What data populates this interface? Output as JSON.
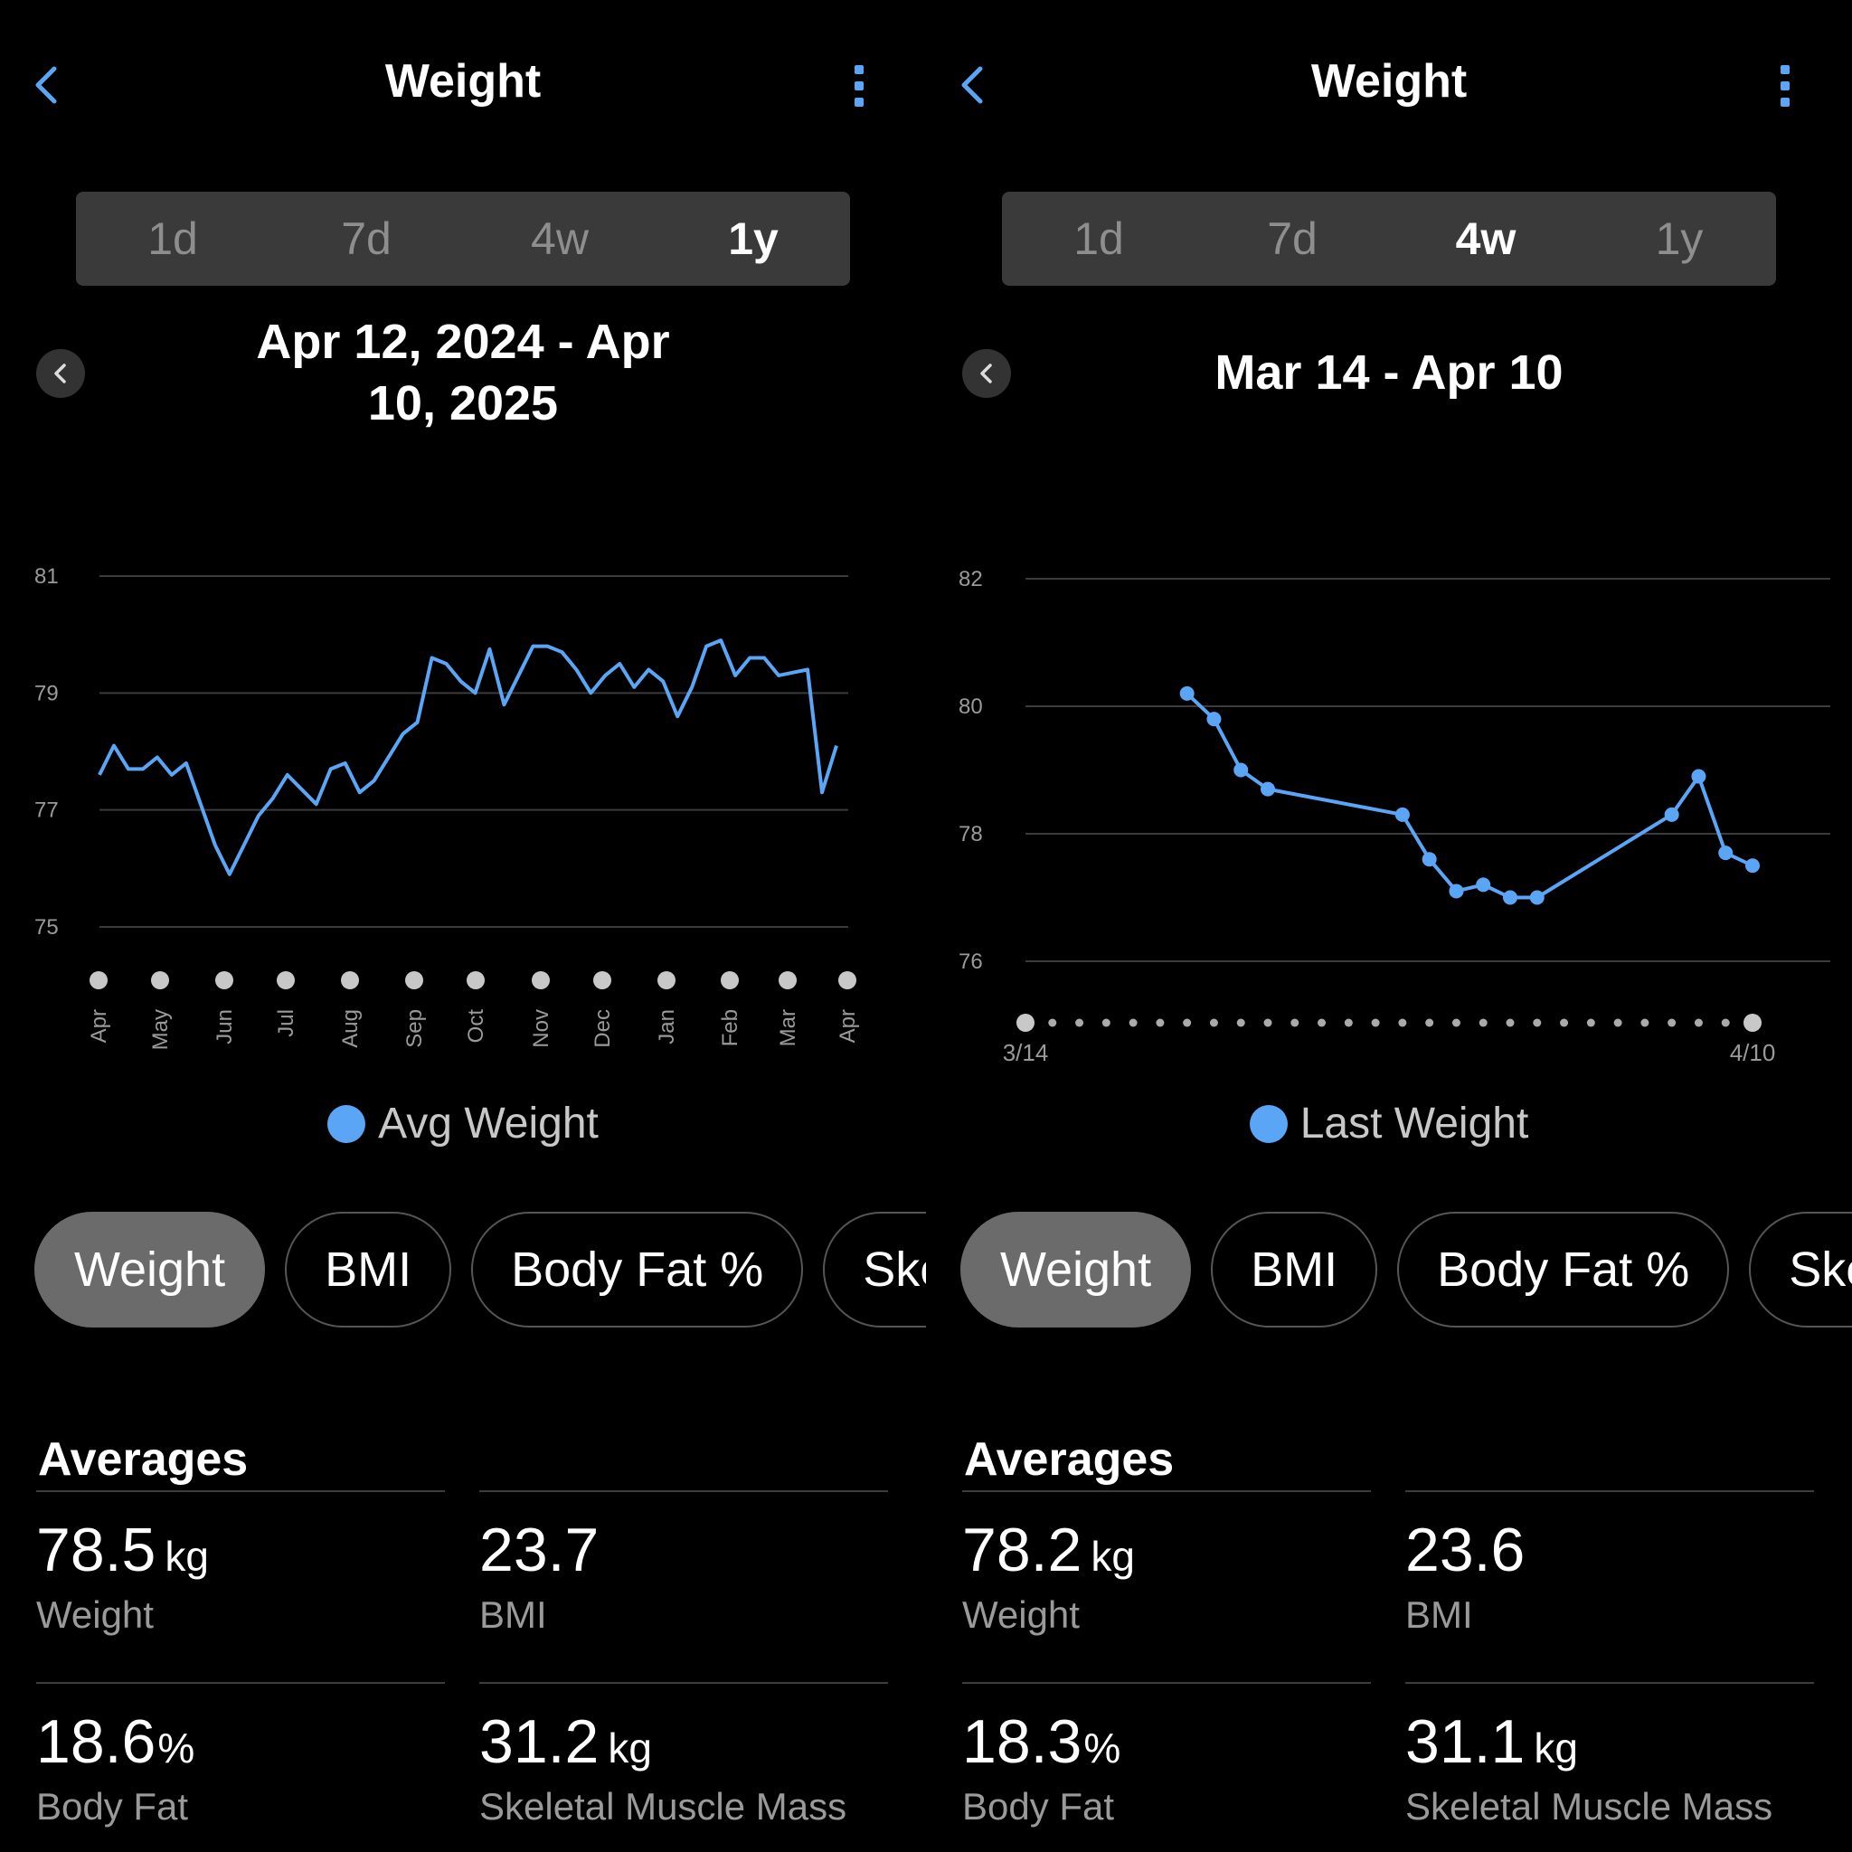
{
  "colors": {
    "accent": "#5aa5f6",
    "background": "#000000",
    "segment_bg": "#3a3a3a",
    "chip_active": "#6b6b6b"
  },
  "icons": {
    "back": "chevron-left-icon",
    "more": "vertical-ellipsis-icon",
    "prev": "chevron-left-icon"
  },
  "left": {
    "title": "Weight",
    "segments": [
      {
        "label": "1d"
      },
      {
        "label": "7d"
      },
      {
        "label": "4w"
      },
      {
        "label": "1y"
      }
    ],
    "active_segment": "1y",
    "date_range": {
      "line1": "Apr 12, 2024 - Apr",
      "line2": "10, 2025"
    },
    "legend": "Avg Weight",
    "chips": [
      {
        "label": "Weight"
      },
      {
        "label": "BMI"
      },
      {
        "label": "Body Fat %"
      },
      {
        "label": "Skeletal Muscle Mass"
      }
    ],
    "averages_title": "Averages",
    "stats": {
      "weight": {
        "value": "78.5",
        "unit": "kg",
        "label": "Weight"
      },
      "bmi": {
        "value": "23.7",
        "unit": "",
        "label": "BMI"
      },
      "body_fat": {
        "value": "18.6",
        "unit": "%",
        "label": "Body Fat"
      },
      "muscle": {
        "value": "31.2",
        "unit": "kg",
        "label": "Skeletal Muscle Mass"
      }
    }
  },
  "right": {
    "title": "Weight",
    "segments": [
      {
        "label": "1d"
      },
      {
        "label": "7d"
      },
      {
        "label": "4w"
      },
      {
        "label": "1y"
      }
    ],
    "active_segment": "4w",
    "date_range": {
      "line1": "Mar 14 - Apr 10"
    },
    "legend": "Last Weight",
    "chips": [
      {
        "label": "Weight"
      },
      {
        "label": "BMI"
      },
      {
        "label": "Body Fat %"
      },
      {
        "label": "Skeletal Muscle Mass"
      }
    ],
    "averages_title": "Averages",
    "stats": {
      "weight": {
        "value": "78.2",
        "unit": "kg",
        "label": "Weight"
      },
      "bmi": {
        "value": "23.6",
        "unit": "",
        "label": "BMI"
      },
      "body_fat": {
        "value": "18.3",
        "unit": "%",
        "label": "Body Fat"
      },
      "muscle": {
        "value": "31.1",
        "unit": "kg",
        "label": "Skeletal Muscle Mass"
      }
    }
  },
  "chart_data": [
    {
      "type": "line",
      "series": [
        {
          "name": "Avg Weight",
          "values": [
            77.6,
            78.1,
            77.7,
            77.7,
            77.9,
            77.6,
            77.8,
            77.1,
            76.4,
            75.9,
            76.4,
            76.9,
            77.2,
            77.6,
            77.35,
            77.1,
            77.7,
            77.8,
            77.3,
            77.5,
            77.9,
            78.3,
            78.5,
            79.6,
            79.5,
            79.2,
            79.0,
            79.75,
            78.8,
            79.3,
            79.8,
            79.8,
            79.7,
            79.4,
            79.0,
            79.3,
            79.5,
            79.1,
            79.4,
            79.2,
            78.6,
            79.1,
            79.8,
            79.9,
            79.3,
            79.6,
            79.6,
            79.3,
            79.35,
            79.4,
            77.3,
            78.1
          ]
        }
      ],
      "x_tick_labels": [
        "Apr",
        "May",
        "Jun",
        "Jul",
        "Aug",
        "Sep",
        "Oct",
        "Nov",
        "Dec",
        "Jan",
        "Feb",
        "Mar",
        "Apr"
      ],
      "y_ticks": [
        81,
        79,
        77,
        75
      ],
      "ylim": [
        75,
        81
      ],
      "grid": true,
      "legend": "bottom-center"
    },
    {
      "type": "line",
      "x_start_label": "3/14",
      "x_end_label": "4/10",
      "series": [
        {
          "name": "Last Weight",
          "points": [
            [
              7,
              80.2
            ],
            [
              8,
              79.8
            ],
            [
              9,
              79.0
            ],
            [
              10,
              78.7
            ],
            [
              15,
              78.3
            ],
            [
              16,
              77.6
            ],
            [
              17,
              77.1
            ],
            [
              18,
              77.2
            ],
            [
              19,
              77.0
            ],
            [
              20,
              77.0
            ],
            [
              25,
              78.3
            ],
            [
              26,
              78.9
            ],
            [
              27,
              77.7
            ],
            [
              28,
              77.5
            ]
          ]
        }
      ],
      "x_day_count": 28,
      "y_ticks": [
        82,
        80,
        78,
        76
      ],
      "ylim": [
        76,
        82
      ],
      "grid": true,
      "legend": "bottom-center"
    }
  ]
}
